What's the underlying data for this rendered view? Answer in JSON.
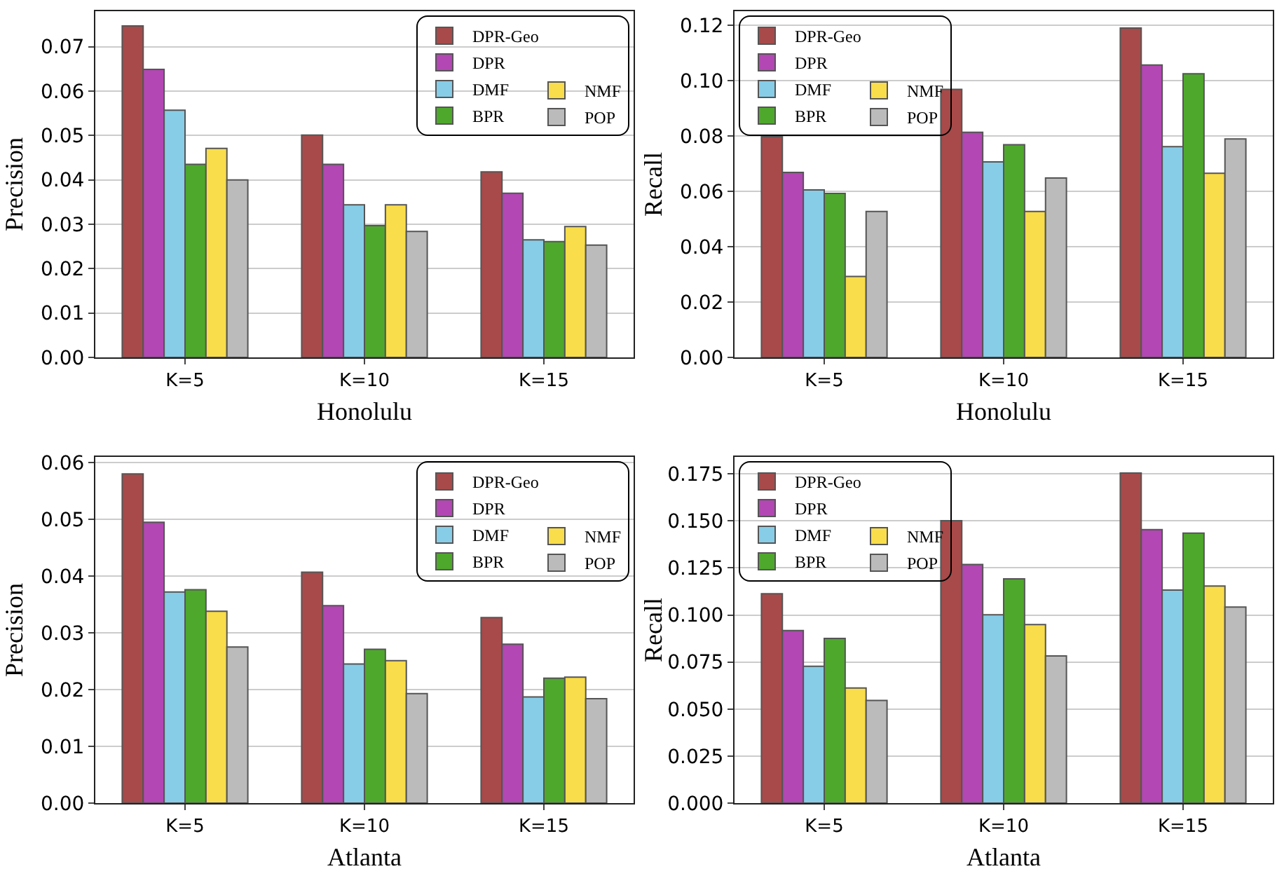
{
  "chart_data": [
    {
      "type": "bar",
      "ylabel": "Precision",
      "xlabel": "Honolulu",
      "categories": [
        "K=5",
        "K=10",
        "K=15"
      ],
      "ylim": [
        0,
        0.078
      ],
      "yticks": [
        {
          "value": 0,
          "label": "0.00"
        },
        0.01,
        0.02,
        0.03,
        0.04,
        0.05,
        0.06,
        0.07
      ],
      "grid": "y",
      "legend": "top right",
      "series": [
        {
          "name": "DPR-Geo",
          "color": "#a84a4a",
          "values": [
            0.0747,
            0.0501,
            0.0418
          ]
        },
        {
          "name": "DPR",
          "color": "#b347b3",
          "values": [
            0.0649,
            0.0435,
            0.037
          ]
        },
        {
          "name": "DMF",
          "color": "#87cde8",
          "values": [
            0.0557,
            0.0344,
            0.0265
          ]
        },
        {
          "name": "BPR",
          "color": "#4ea82c",
          "values": [
            0.0435,
            0.0297,
            0.0261
          ]
        },
        {
          "name": "NMF",
          "color": "#f9dd4a",
          "values": [
            0.0471,
            0.0344,
            0.0295
          ]
        },
        {
          "name": "POP",
          "color": "#bbbbbb",
          "values": [
            0.04,
            0.0284,
            0.0253
          ]
        }
      ]
    },
    {
      "type": "bar",
      "ylabel": "Recall",
      "xlabel": "Honolulu",
      "categories": [
        "K=5",
        "K=10",
        "K=15"
      ],
      "ylim": [
        0,
        0.125
      ],
      "yticks": [
        {
          "value": 0,
          "label": "0.00"
        },
        0.02,
        0.04,
        0.06,
        0.08,
        {
          "value": 0.1,
          "label": "0.10"
        },
        0.12
      ],
      "grid": "y",
      "legend": "top left",
      "series": [
        {
          "name": "DPR-Geo",
          "color": "#a84a4a",
          "values": [
            0.0797,
            0.0968,
            0.1189
          ]
        },
        {
          "name": "DPR",
          "color": "#b347b3",
          "values": [
            0.0668,
            0.0813,
            0.1056
          ]
        },
        {
          "name": "DMF",
          "color": "#87cde8",
          "values": [
            0.0605,
            0.0706,
            0.0761
          ]
        },
        {
          "name": "BPR",
          "color": "#4ea82c",
          "values": [
            0.0592,
            0.0768,
            0.1024
          ]
        },
        {
          "name": "NMF",
          "color": "#f9dd4a",
          "values": [
            0.0292,
            0.0527,
            0.0665
          ]
        },
        {
          "name": "POP",
          "color": "#bbbbbb",
          "values": [
            0.0527,
            0.0648,
            0.0789
          ]
        }
      ]
    },
    {
      "type": "bar",
      "ylabel": "Precision",
      "xlabel": "Atlanta",
      "categories": [
        "K=5",
        "K=10",
        "K=15"
      ],
      "ylim": [
        0,
        0.061
      ],
      "yticks": [
        {
          "value": 0,
          "label": "0.00"
        },
        0.01,
        0.02,
        0.03,
        0.04,
        0.05,
        0.06
      ],
      "grid": "y",
      "legend": "top right",
      "series": [
        {
          "name": "DPR-Geo",
          "color": "#a84a4a",
          "values": [
            0.058,
            0.0407,
            0.0327
          ]
        },
        {
          "name": "DPR",
          "color": "#b347b3",
          "values": [
            0.0495,
            0.0348,
            0.028
          ]
        },
        {
          "name": "DMF",
          "color": "#87cde8",
          "values": [
            0.0372,
            0.0245,
            0.0187
          ]
        },
        {
          "name": "BPR",
          "color": "#4ea82c",
          "values": [
            0.0376,
            0.0271,
            0.022
          ]
        },
        {
          "name": "NMF",
          "color": "#f9dd4a",
          "values": [
            0.0338,
            0.0251,
            0.0222
          ]
        },
        {
          "name": "POP",
          "color": "#bbbbbb",
          "values": [
            0.0275,
            0.0193,
            0.0184
          ]
        }
      ]
    },
    {
      "type": "bar",
      "ylabel": "Recall",
      "xlabel": "Atlanta",
      "categories": [
        "K=5",
        "K=10",
        "K=15"
      ],
      "ylim": [
        0,
        0.184
      ],
      "yticks": [
        {
          "value": 0,
          "label": "0.000"
        },
        {
          "value": 0.025,
          "label": "0.025"
        },
        {
          "value": 0.05,
          "label": "0.050"
        },
        {
          "value": 0.075,
          "label": "0.075"
        },
        {
          "value": 0.1,
          "label": "0.100"
        },
        {
          "value": 0.125,
          "label": "0.125"
        },
        {
          "value": 0.15,
          "label": "0.150"
        },
        {
          "value": 0.175,
          "label": "0.175"
        }
      ],
      "grid": "y",
      "legend": "top left",
      "series": [
        {
          "name": "DPR-Geo",
          "color": "#a84a4a",
          "values": [
            0.1113,
            0.1501,
            0.1754
          ]
        },
        {
          "name": "DPR",
          "color": "#b347b3",
          "values": [
            0.0917,
            0.1268,
            0.1454
          ]
        },
        {
          "name": "DMF",
          "color": "#87cde8",
          "values": [
            0.0727,
            0.1001,
            0.1132
          ]
        },
        {
          "name": "BPR",
          "color": "#4ea82c",
          "values": [
            0.0875,
            0.1192,
            0.1435
          ]
        },
        {
          "name": "NMF",
          "color": "#f9dd4a",
          "values": [
            0.0612,
            0.0949,
            0.1154
          ]
        },
        {
          "name": "POP",
          "color": "#bbbbbb",
          "values": [
            0.0546,
            0.0782,
            0.1042
          ]
        }
      ]
    }
  ]
}
